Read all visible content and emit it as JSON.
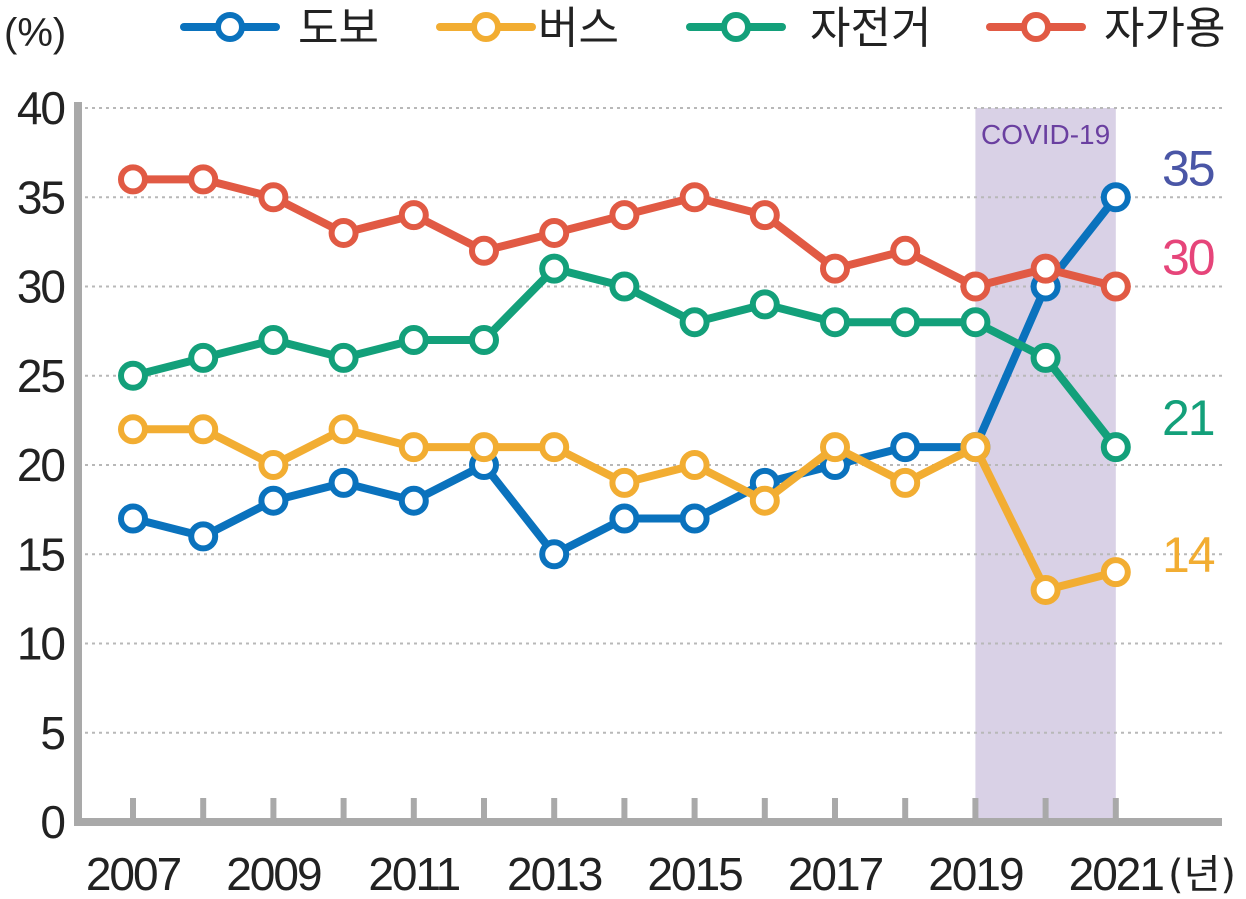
{
  "chart_data": {
    "type": "line",
    "y_unit": "(%)",
    "x_unit": "(년)",
    "ylim": [
      0,
      40
    ],
    "y_ticks": [
      0,
      5,
      10,
      15,
      20,
      25,
      30,
      35,
      40
    ],
    "x": [
      2007,
      2008,
      2009,
      2010,
      2011,
      2012,
      2013,
      2014,
      2015,
      2016,
      2017,
      2018,
      2019,
      2020,
      2021
    ],
    "x_tick_labels": [
      "2007",
      "2009",
      "2011",
      "2013",
      "2015",
      "2017",
      "2019",
      "2021"
    ],
    "grid": true,
    "legend_position": "top",
    "series": [
      {
        "name": "도보",
        "color": "#0a72bd",
        "values": [
          17,
          16,
          18,
          19,
          18,
          20,
          15,
          17,
          17,
          19,
          20,
          21,
          21,
          30,
          35
        ],
        "end_label": "35",
        "end_label_color": "#4a56a6"
      },
      {
        "name": "버스",
        "color": "#f2ad32",
        "values": [
          22,
          22,
          20,
          22,
          21,
          21,
          21,
          19,
          20,
          18,
          21,
          19,
          21,
          13,
          14
        ],
        "end_label": "14",
        "end_label_color": "#f2ad32"
      },
      {
        "name": "자전거",
        "color": "#13a07a",
        "values": [
          25,
          26,
          27,
          26,
          27,
          27,
          31,
          30,
          28,
          29,
          28,
          28,
          28,
          26,
          21
        ],
        "end_label": "21",
        "end_label_color": "#13a07a"
      },
      {
        "name": "자가용",
        "color": "#e15a44",
        "values": [
          36,
          36,
          35,
          33,
          34,
          32,
          33,
          34,
          35,
          34,
          31,
          32,
          30,
          31,
          30
        ],
        "end_label": "30",
        "end_label_color": "#e6457a"
      }
    ],
    "annotations": [
      {
        "text": "COVID-19",
        "x_range": [
          2019,
          2021
        ],
        "color": "#d9d1e6",
        "text_color": "#6a3fa0"
      }
    ]
  }
}
